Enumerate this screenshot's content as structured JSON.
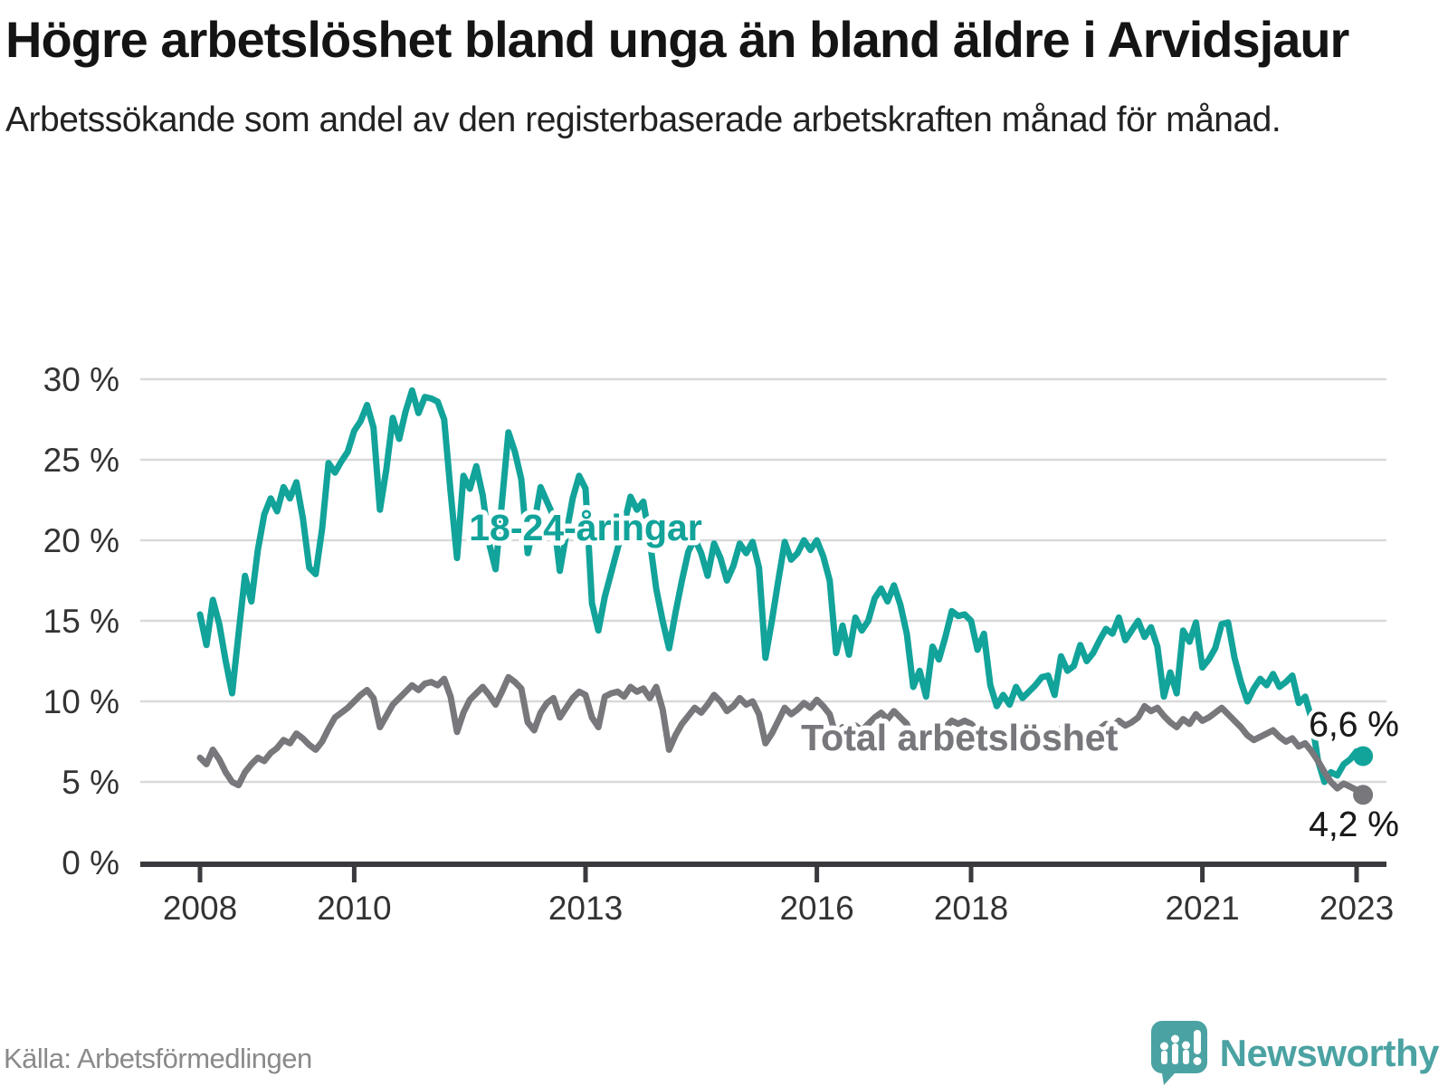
{
  "header": {
    "title": "Högre arbetslöshet bland unga än bland äldre i Arvidsjaur",
    "subtitle": "Arbetssökande som andel av den registerbaserade arbetskraften månad för månad."
  },
  "footer": {
    "source": "Källa: Arbetsförmedlingen",
    "brand": "Newsworthy"
  },
  "colors": {
    "youth_line": "#12a39a",
    "total_line": "#77777c",
    "grid": "#d9d9d9",
    "axis": "#3a3a3e",
    "tick_text": "#333333",
    "value_text": "#1a1a1a",
    "logo_teal": "#4ba2a2"
  },
  "chart_data": {
    "type": "line",
    "x_start_year": 2008,
    "points_per_year": 12,
    "x_tick_years": [
      2008,
      2010,
      2013,
      2016,
      2018,
      2021,
      2023
    ],
    "y_ticks": [
      0,
      5,
      10,
      15,
      20,
      25,
      30
    ],
    "y_tick_suffix": " %",
    "ylim": [
      0,
      31
    ],
    "grid": true,
    "series": [
      {
        "key": "youth",
        "name": "18-24-åringar",
        "color": "#12a39a",
        "label_x_year": 2013.0,
        "label_value": 20.8,
        "end_label": "6,6 %",
        "end_label_position": "above",
        "values": [
          15.4,
          13.5,
          16.3,
          14.8,
          12.5,
          10.5,
          14.2,
          17.8,
          16.2,
          19.4,
          21.6,
          22.6,
          21.8,
          23.3,
          22.6,
          23.6,
          21.4,
          18.3,
          17.9,
          20.7,
          24.8,
          24.2,
          24.9,
          25.5,
          26.8,
          27.4,
          28.4,
          27.0,
          21.9,
          24.4,
          27.6,
          26.3,
          28.0,
          29.3,
          27.9,
          28.9,
          28.8,
          28.6,
          27.5,
          23.0,
          18.9,
          24.0,
          23.2,
          24.6,
          22.8,
          19.8,
          18.2,
          22.4,
          26.7,
          25.5,
          23.8,
          19.2,
          21.0,
          23.3,
          22.4,
          21.5,
          18.1,
          20.4,
          22.6,
          24.0,
          23.2,
          16.1,
          14.4,
          16.5,
          18.0,
          19.5,
          21.0,
          22.7,
          21.9,
          22.4,
          20.0,
          17.0,
          15.0,
          13.3,
          15.5,
          17.5,
          19.3,
          20.1,
          19.2,
          17.8,
          19.8,
          18.9,
          17.5,
          18.4,
          19.8,
          19.2,
          19.9,
          18.3,
          12.7,
          15.0,
          17.5,
          19.9,
          18.8,
          19.2,
          20.0,
          19.4,
          20.0,
          19.0,
          17.5,
          13.0,
          14.7,
          12.9,
          15.2,
          14.4,
          15.0,
          16.4,
          17.0,
          16.2,
          17.2,
          16.0,
          14.2,
          10.9,
          11.9,
          10.3,
          13.4,
          12.6,
          14.0,
          15.6,
          15.3,
          15.4,
          15.0,
          13.2,
          14.2,
          11.0,
          9.7,
          10.4,
          9.8,
          10.9,
          10.2,
          10.6,
          11.0,
          11.5,
          11.6,
          10.4,
          12.8,
          11.9,
          12.2,
          13.5,
          12.5,
          13.0,
          13.8,
          14.5,
          14.2,
          15.2,
          13.8,
          14.4,
          15.0,
          14.0,
          14.6,
          13.4,
          10.3,
          11.8,
          10.5,
          14.4,
          13.7,
          14.9,
          12.1,
          12.6,
          13.3,
          14.8,
          14.9,
          12.7,
          11.2,
          10.0,
          10.8,
          11.4,
          11.0,
          11.7,
          10.9,
          11.2,
          11.6,
          9.9,
          10.3,
          8.9,
          6.3,
          5.0,
          5.6,
          5.4,
          6.1,
          6.4,
          6.9,
          6.6
        ]
      },
      {
        "key": "total",
        "name": "Total arbetslöshet",
        "color": "#77777c",
        "label_x_year": 2017.85,
        "label_value": 7.75,
        "end_label": "4,2 %",
        "end_label_position": "below",
        "values": [
          6.5,
          6.1,
          7.0,
          6.4,
          5.6,
          5.0,
          4.8,
          5.6,
          6.1,
          6.5,
          6.3,
          6.8,
          7.1,
          7.6,
          7.4,
          8.0,
          7.7,
          7.3,
          7.0,
          7.5,
          8.3,
          9.0,
          9.3,
          9.6,
          10.0,
          10.4,
          10.7,
          10.2,
          8.4,
          9.1,
          9.8,
          10.2,
          10.6,
          11.0,
          10.7,
          11.1,
          11.2,
          11.0,
          11.4,
          10.3,
          8.1,
          9.3,
          10.1,
          10.5,
          10.9,
          10.4,
          9.8,
          10.6,
          11.5,
          11.2,
          10.8,
          8.7,
          8.2,
          9.3,
          9.9,
          10.2,
          9.0,
          9.6,
          10.2,
          10.6,
          10.4,
          9.0,
          8.4,
          10.3,
          10.5,
          10.6,
          10.3,
          10.9,
          10.6,
          10.8,
          10.2,
          10.9,
          9.5,
          7.0,
          7.9,
          8.6,
          9.1,
          9.6,
          9.3,
          9.8,
          10.4,
          10.0,
          9.4,
          9.7,
          10.2,
          9.8,
          10.0,
          9.2,
          7.4,
          8.0,
          8.8,
          9.6,
          9.2,
          9.5,
          9.9,
          9.6,
          10.1,
          9.7,
          9.2,
          7.8,
          8.4,
          7.6,
          8.5,
          8.2,
          8.6,
          9.0,
          9.3,
          8.9,
          9.4,
          9.0,
          8.6,
          7.5,
          7.8,
          7.2,
          8.2,
          7.9,
          8.4,
          8.8,
          8.6,
          8.8,
          8.6,
          8.2,
          8.5,
          7.6,
          7.0,
          7.4,
          7.1,
          7.7,
          7.3,
          7.6,
          7.8,
          8.0,
          8.1,
          7.6,
          8.3,
          7.9,
          7.7,
          8.2,
          7.8,
          8.0,
          8.3,
          8.6,
          8.4,
          8.8,
          8.5,
          8.7,
          9.0,
          9.7,
          9.4,
          9.6,
          9.1,
          8.7,
          8.4,
          8.9,
          8.6,
          9.2,
          8.8,
          9.0,
          9.3,
          9.6,
          9.2,
          8.8,
          8.4,
          7.9,
          7.6,
          7.8,
          8.0,
          8.2,
          7.8,
          7.5,
          7.7,
          7.2,
          7.4,
          6.9,
          6.3,
          5.6,
          5.0,
          4.6,
          4.9,
          4.7,
          4.5,
          4.2
        ]
      }
    ]
  }
}
